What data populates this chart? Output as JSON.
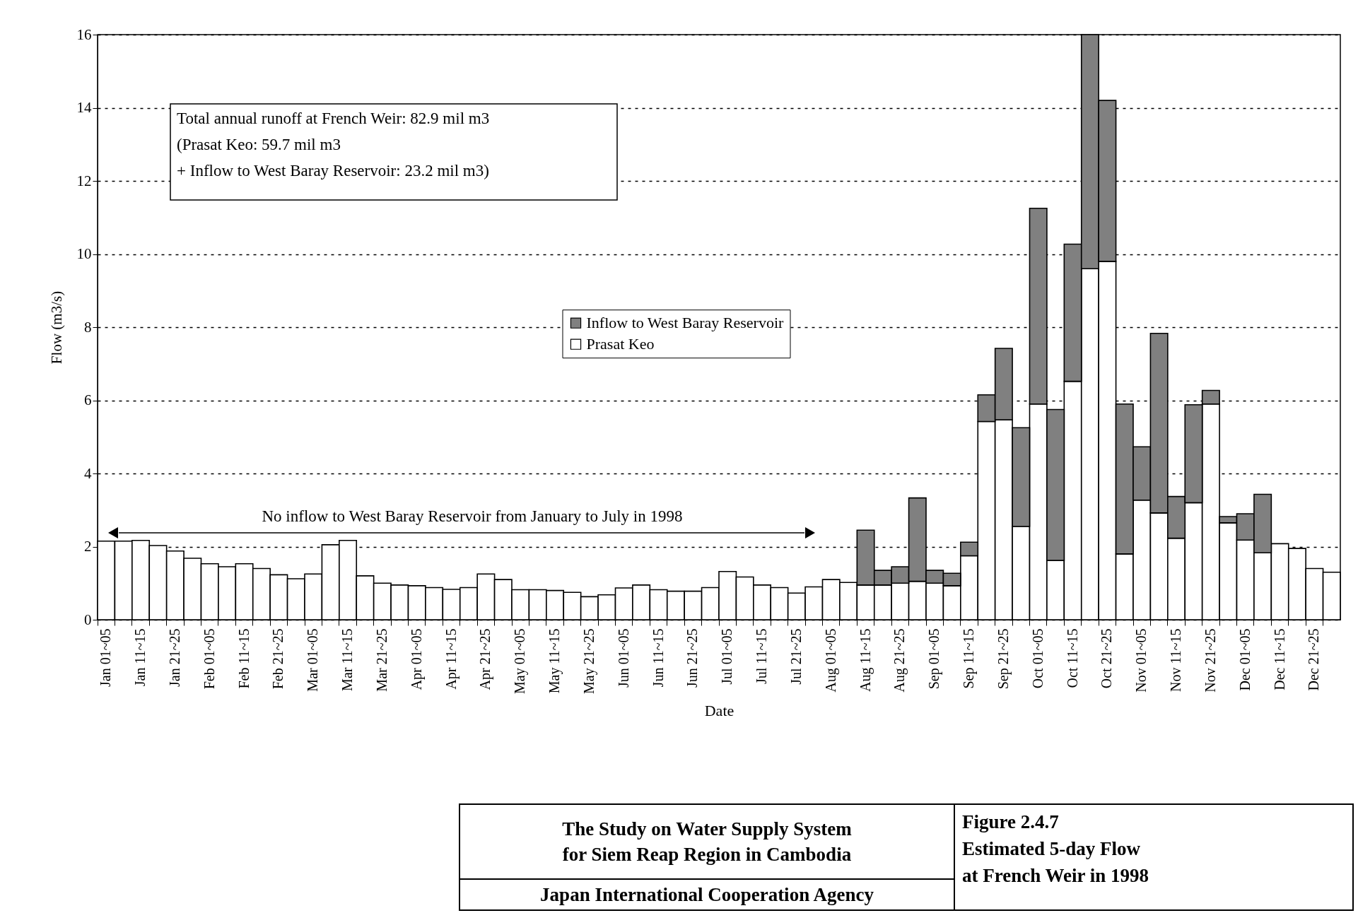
{
  "chart_data": {
    "type": "bar",
    "stacked": true,
    "title": "Figure 2.4.7\nEstimated 5-day Flow\nat French Weir in 1998",
    "subtitle": "The Study on Water Supply System\nfor Siem Reap Region in Cambodia",
    "xlabel": "Date",
    "ylabel": "Flow (m3/s)",
    "categories": [
      "Jan 01~05",
      null,
      "Jan 11~15",
      null,
      "Jan 21~25",
      null,
      "Feb 01~05",
      null,
      "Feb 11~15",
      null,
      "Feb 21~25",
      null,
      "Mar 01~05",
      null,
      "Mar 11~15",
      null,
      "Mar 21~25",
      null,
      "Apr 01~05",
      null,
      "Apr 11~15",
      null,
      "Apr 21~25",
      null,
      "May 01~05",
      null,
      "May 11~15",
      null,
      "May 21~25",
      null,
      "Jun 01~05",
      null,
      "Jun 11~15",
      null,
      "Jun 21~25",
      null,
      "Jul 01~05",
      null,
      "Jul 11~15",
      null,
      "Jul 21~25",
      null,
      "Aug 01~05",
      null,
      "Aug 11~15",
      null,
      "Aug 21~25",
      null,
      "Sep 01~05",
      null,
      "Sep 11~15",
      null,
      "Sep 21~25",
      null,
      "Oct 01~05",
      null,
      "Oct 11~15",
      null,
      "Oct 21~25",
      null,
      "Nov 01~05",
      null,
      "Nov 11~15",
      null,
      "Nov 21~25",
      null,
      "Dec 01~05",
      null,
      "Dec 11~15",
      null,
      "Dec 21~25",
      null
    ],
    "series": [
      {
        "name": "Prasat Keo",
        "color": "#ffffff",
        "values": [
          2.15,
          2.15,
          2.17,
          2.03,
          1.88,
          1.68,
          1.53,
          1.45,
          1.53,
          1.4,
          1.23,
          1.12,
          1.25,
          2.05,
          2.17,
          1.2,
          1.0,
          0.95,
          0.93,
          0.88,
          0.83,
          0.88,
          1.25,
          1.1,
          0.82,
          0.82,
          0.8,
          0.75,
          0.63,
          0.68,
          0.87,
          0.95,
          0.82,
          0.78,
          0.78,
          0.88,
          1.32,
          1.17,
          0.95,
          0.88,
          0.73,
          0.9,
          1.1,
          1.02,
          0.95,
          0.95,
          1.0,
          1.05,
          1.0,
          0.93,
          1.75,
          5.42,
          5.47,
          2.55,
          5.9,
          1.62,
          6.52,
          9.6,
          9.8,
          1.8,
          3.27,
          2.92,
          2.23,
          3.2,
          5.9,
          2.65,
          2.18,
          1.83,
          2.08,
          1.95,
          1.4,
          1.3
        ]
      },
      {
        "name": "Inflow to West Baray Reservoir",
        "color": "#808080",
        "values": [
          null,
          null,
          null,
          null,
          null,
          null,
          null,
          null,
          null,
          null,
          null,
          null,
          null,
          null,
          null,
          null,
          null,
          null,
          null,
          null,
          null,
          null,
          null,
          null,
          null,
          null,
          null,
          null,
          null,
          null,
          null,
          null,
          null,
          null,
          null,
          null,
          null,
          null,
          null,
          null,
          null,
          null,
          null,
          null,
          1.5,
          0.4,
          0.45,
          2.28,
          0.35,
          0.34,
          0.37,
          0.73,
          1.95,
          2.7,
          5.35,
          4.13,
          3.75,
          6.4,
          4.4,
          4.1,
          1.46,
          4.91,
          1.14,
          2.68,
          0.37,
          0.17,
          0.72,
          1.6,
          null,
          null,
          null,
          null
        ]
      }
    ],
    "ylim": [
      0,
      16
    ],
    "yticks": [
      0,
      2,
      4,
      6,
      8,
      10,
      12,
      14,
      16
    ],
    "grid": "y",
    "legend": "center",
    "annotations": [
      "Total annual runoff at French Weir: 82.9 mil m3\n(Prasat Keo: 59.7 mil m3\n + Inflow to West Baray Reservoir: 23.2 mil m3)",
      "No inflow to West Baray Reservoir from January to July in 1998",
      "Japan International Cooperation Agency"
    ]
  }
}
